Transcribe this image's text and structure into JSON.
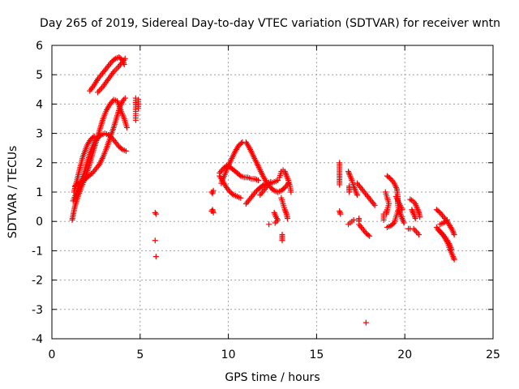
{
  "chart_data": {
    "type": "scatter",
    "title": "Day 265 of 2019, Sidereal Day-to-day VTEC variation (SDTVAR) for receiver wntn",
    "xlabel": "GPS time / hours",
    "ylabel": "SDTVAR / TECUs",
    "xlim": [
      0,
      25
    ],
    "ylim": [
      -4,
      6
    ],
    "xticks": [
      "0",
      "5",
      "10",
      "15",
      "20",
      "25"
    ],
    "yticks": [
      "-4",
      "-3",
      "-2",
      "-1",
      "0",
      "1",
      "2",
      "3",
      "4",
      "5",
      "6"
    ],
    "grid": true,
    "marker": "plus",
    "color": "#ff0000",
    "segments": [
      [
        [
          1.15,
          0.05
        ],
        [
          1.3,
          0.5
        ],
        [
          1.5,
          0.9
        ],
        [
          1.7,
          1.2
        ],
        [
          1.9,
          1.5
        ],
        [
          2.1,
          1.9
        ],
        [
          2.3,
          2.3
        ],
        [
          2.5,
          2.7
        ],
        [
          2.7,
          3.1
        ],
        [
          2.9,
          3.5
        ],
        [
          3.1,
          3.8
        ],
        [
          3.3,
          4.0
        ],
        [
          3.5,
          4.15
        ],
        [
          3.7,
          4.1
        ],
        [
          3.9,
          3.8
        ],
        [
          4.1,
          3.5
        ],
        [
          4.25,
          3.2
        ]
      ],
      [
        [
          1.2,
          0.7
        ],
        [
          1.4,
          1.0
        ],
        [
          1.6,
          1.3
        ],
        [
          1.8,
          1.6
        ],
        [
          2.0,
          2.0
        ],
        [
          2.2,
          2.4
        ],
        [
          2.4,
          2.7
        ],
        [
          2.6,
          2.85
        ],
        [
          2.8,
          2.95
        ],
        [
          3.0,
          3.0
        ],
        [
          3.2,
          2.95
        ],
        [
          3.4,
          2.85
        ],
        [
          3.6,
          2.7
        ],
        [
          3.8,
          2.55
        ],
        [
          4.0,
          2.45
        ],
        [
          4.2,
          2.4
        ]
      ],
      [
        [
          1.3,
          1.2
        ],
        [
          1.5,
          1.3
        ],
        [
          1.7,
          1.35
        ],
        [
          1.9,
          1.45
        ],
        [
          2.1,
          1.55
        ],
        [
          2.3,
          1.65
        ],
        [
          2.5,
          1.8
        ],
        [
          2.7,
          1.95
        ],
        [
          2.9,
          2.2
        ],
        [
          3.1,
          2.5
        ],
        [
          3.3,
          2.85
        ],
        [
          3.5,
          3.2
        ],
        [
          3.7,
          3.6
        ],
        [
          3.85,
          3.9
        ],
        [
          4.0,
          4.1
        ],
        [
          4.15,
          4.2
        ]
      ],
      [
        [
          1.25,
          1.0
        ],
        [
          1.5,
          1.6
        ],
        [
          1.75,
          2.2
        ],
        [
          2.0,
          2.6
        ],
        [
          2.2,
          2.8
        ],
        [
          2.4,
          2.9
        ]
      ],
      [
        [
          2.15,
          4.45
        ],
        [
          2.4,
          4.65
        ],
        [
          2.6,
          4.85
        ],
        [
          2.8,
          5.0
        ],
        [
          3.0,
          5.15
        ],
        [
          3.2,
          5.3
        ],
        [
          3.4,
          5.45
        ],
        [
          3.6,
          5.55
        ],
        [
          3.8,
          5.6
        ],
        [
          4.0,
          5.5
        ],
        [
          4.1,
          5.35
        ]
      ],
      [
        [
          2.6,
          4.4
        ],
        [
          2.9,
          4.6
        ],
        [
          3.2,
          4.85
        ],
        [
          3.5,
          5.1
        ],
        [
          3.75,
          5.25
        ],
        [
          3.95,
          5.4
        ],
        [
          4.15,
          5.55
        ]
      ],
      [
        [
          4.75,
          4.2
        ],
        [
          4.75,
          4.05
        ],
        [
          4.75,
          3.9
        ],
        [
          4.75,
          3.75
        ],
        [
          4.75,
          3.6
        ],
        [
          4.75,
          3.45
        ]
      ],
      [
        [
          4.9,
          4.15
        ],
        [
          4.9,
          4.0
        ],
        [
          4.9,
          3.85
        ]
      ],
      [
        [
          5.85,
          0.3
        ],
        [
          5.9,
          0.25
        ]
      ],
      [
        [
          5.85,
          -0.65
        ]
      ],
      [
        [
          5.9,
          -1.2
        ]
      ],
      [
        [
          9.05,
          1.0
        ],
        [
          9.1,
          0.95
        ],
        [
          9.15,
          1.05
        ]
      ],
      [
        [
          9.1,
          0.4
        ],
        [
          9.15,
          0.3
        ],
        [
          9.05,
          0.35
        ]
      ],
      [
        [
          9.5,
          1.65
        ],
        [
          9.7,
          1.8
        ],
        [
          9.9,
          1.9
        ],
        [
          10.1,
          1.85
        ],
        [
          10.3,
          1.75
        ],
        [
          10.5,
          1.65
        ],
        [
          10.7,
          1.55
        ],
        [
          10.9,
          1.5
        ],
        [
          11.1,
          1.5
        ],
        [
          11.3,
          1.45
        ],
        [
          11.5,
          1.45
        ],
        [
          11.7,
          1.4
        ]
      ],
      [
        [
          9.5,
          1.55
        ],
        [
          9.7,
          1.35
        ],
        [
          9.9,
          1.15
        ],
        [
          10.1,
          1.0
        ],
        [
          10.3,
          0.9
        ],
        [
          10.5,
          0.85
        ],
        [
          10.7,
          0.8
        ]
      ],
      [
        [
          9.6,
          1.3
        ],
        [
          9.8,
          1.6
        ],
        [
          10.0,
          1.9
        ],
        [
          10.2,
          2.15
        ],
        [
          10.4,
          2.4
        ],
        [
          10.6,
          2.6
        ],
        [
          10.8,
          2.7
        ]
      ],
      [
        [
          11.0,
          2.7
        ],
        [
          11.2,
          2.5
        ],
        [
          11.4,
          2.25
        ],
        [
          11.6,
          2.0
        ],
        [
          11.8,
          1.75
        ],
        [
          12.0,
          1.5
        ],
        [
          12.2,
          1.3
        ],
        [
          12.4,
          1.15
        ],
        [
          12.6,
          1.05
        ],
        [
          12.8,
          1.0
        ],
        [
          13.0,
          1.05
        ],
        [
          13.2,
          1.15
        ],
        [
          13.4,
          1.3
        ]
      ],
      [
        [
          11.0,
          0.6
        ],
        [
          11.2,
          0.75
        ],
        [
          11.4,
          0.9
        ],
        [
          11.6,
          1.05
        ],
        [
          11.8,
          1.15
        ],
        [
          12.0,
          1.25
        ],
        [
          12.2,
          1.3
        ],
        [
          12.4,
          1.35
        ]
      ],
      [
        [
          11.8,
          0.9
        ],
        [
          12.0,
          1.05
        ],
        [
          12.2,
          1.2
        ],
        [
          12.4,
          1.3
        ],
        [
          12.6,
          1.35
        ],
        [
          12.8,
          1.4
        ]
      ],
      [
        [
          12.3,
          -0.1
        ]
      ],
      [
        [
          12.6,
          0.3
        ],
        [
          12.7,
          0.15
        ],
        [
          12.8,
          0.05
        ],
        [
          12.65,
          -0.05
        ]
      ],
      [
        [
          12.9,
          1.5
        ],
        [
          13.0,
          1.7
        ],
        [
          13.1,
          1.75
        ],
        [
          13.2,
          1.7
        ],
        [
          13.3,
          1.55
        ],
        [
          13.4,
          1.4
        ],
        [
          13.5,
          1.2
        ],
        [
          13.55,
          1.0
        ]
      ],
      [
        [
          13.0,
          0.8
        ],
        [
          13.1,
          0.6
        ],
        [
          13.2,
          0.4
        ],
        [
          13.3,
          0.25
        ],
        [
          13.35,
          0.1
        ]
      ],
      [
        [
          13.05,
          -0.45
        ],
        [
          13.05,
          -0.55
        ],
        [
          13.05,
          -0.65
        ]
      ],
      [
        [
          16.3,
          2.0
        ],
        [
          16.3,
          1.6
        ],
        [
          16.3,
          1.25
        ]
      ],
      [
        [
          16.3,
          0.35
        ],
        [
          16.35,
          0.25
        ]
      ],
      [
        [
          16.8,
          1.7
        ],
        [
          16.9,
          1.55
        ],
        [
          17.0,
          1.4
        ],
        [
          17.1,
          1.2
        ],
        [
          17.2,
          1.05
        ],
        [
          17.3,
          0.9
        ]
      ],
      [
        [
          16.85,
          1.2
        ],
        [
          16.85,
          1.1
        ],
        [
          16.85,
          1.0
        ]
      ],
      [
        [
          16.8,
          -0.1
        ],
        [
          16.9,
          -0.05
        ],
        [
          17.0,
          0.0
        ],
        [
          17.1,
          0.05
        ]
      ],
      [
        [
          17.3,
          1.3
        ],
        [
          17.5,
          1.15
        ],
        [
          17.7,
          1.0
        ],
        [
          17.9,
          0.85
        ],
        [
          18.1,
          0.7
        ],
        [
          18.3,
          0.55
        ]
      ],
      [
        [
          17.4,
          -0.1
        ],
        [
          17.6,
          -0.25
        ],
        [
          17.8,
          -0.4
        ],
        [
          18.0,
          -0.5
        ]
      ],
      [
        [
          17.4,
          0.1
        ],
        [
          17.4,
          0.0
        ]
      ],
      [
        [
          17.8,
          -3.45
        ]
      ],
      [
        [
          18.8,
          0.25
        ],
        [
          18.8,
          0.05
        ]
      ],
      [
        [
          18.9,
          1.0
        ],
        [
          19.0,
          0.8
        ],
        [
          19.1,
          0.6
        ],
        [
          19.0,
          0.4
        ],
        [
          18.95,
          0.25
        ]
      ],
      [
        [
          19.0,
          1.55
        ],
        [
          19.2,
          1.45
        ],
        [
          19.4,
          1.3
        ],
        [
          19.55,
          1.1
        ],
        [
          19.6,
          0.85
        ],
        [
          19.6,
          0.6
        ],
        [
          19.65,
          0.4
        ],
        [
          19.75,
          0.25
        ],
        [
          19.85,
          0.1
        ],
        [
          19.95,
          -0.05
        ]
      ],
      [
        [
          19.0,
          -0.2
        ],
        [
          19.2,
          -0.15
        ],
        [
          19.4,
          -0.05
        ],
        [
          19.5,
          0.15
        ],
        [
          19.6,
          0.35
        ]
      ],
      [
        [
          19.5,
          0.85
        ],
        [
          19.7,
          0.6
        ],
        [
          19.85,
          0.4
        ]
      ],
      [
        [
          20.3,
          0.75
        ],
        [
          20.45,
          0.7
        ],
        [
          20.6,
          0.6
        ],
        [
          20.7,
          0.45
        ],
        [
          20.8,
          0.3
        ],
        [
          20.85,
          0.15
        ]
      ],
      [
        [
          20.4,
          0.4
        ],
        [
          20.5,
          0.25
        ],
        [
          20.6,
          0.1
        ]
      ],
      [
        [
          20.5,
          -0.25
        ],
        [
          20.65,
          -0.35
        ],
        [
          20.8,
          -0.45
        ]
      ],
      [
        [
          20.2,
          -0.25
        ],
        [
          20.3,
          -0.25
        ]
      ],
      [
        [
          21.8,
          0.4
        ],
        [
          22.0,
          0.3
        ],
        [
          22.2,
          0.15
        ],
        [
          22.4,
          0.0
        ],
        [
          22.55,
          -0.15
        ],
        [
          22.7,
          -0.3
        ],
        [
          22.8,
          -0.45
        ]
      ],
      [
        [
          21.8,
          -0.2
        ],
        [
          22.0,
          -0.35
        ],
        [
          22.2,
          -0.5
        ],
        [
          22.4,
          -0.7
        ],
        [
          22.55,
          -0.95
        ],
        [
          22.7,
          -1.15
        ],
        [
          22.8,
          -1.3
        ]
      ],
      [
        [
          21.9,
          -0.3
        ],
        [
          22.1,
          -0.4
        ],
        [
          22.3,
          -0.55
        ],
        [
          22.5,
          -0.75
        ],
        [
          22.65,
          -0.95
        ]
      ],
      [
        [
          22.0,
          -0.1
        ],
        [
          22.2,
          -0.05
        ],
        [
          22.4,
          0.05
        ]
      ]
    ]
  }
}
